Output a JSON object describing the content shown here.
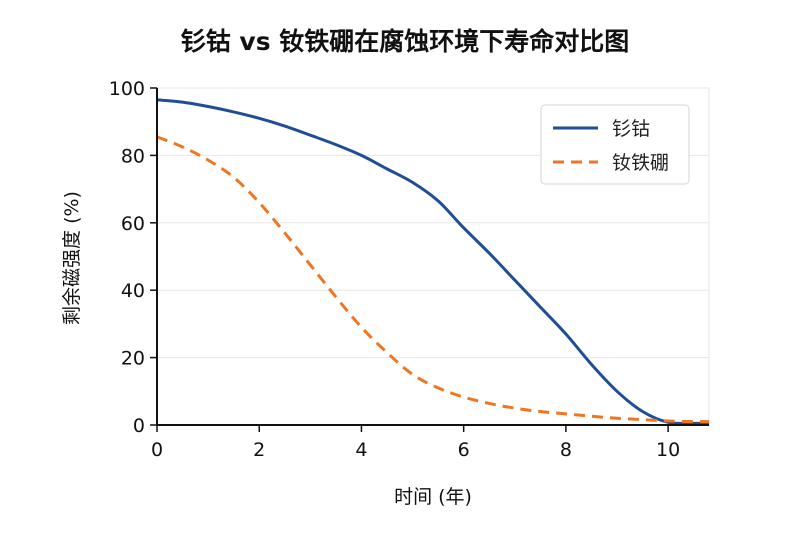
{
  "chart_data": {
    "type": "line",
    "title": "钐钴 vs 钕铁硼在腐蚀环境下寿命对比图",
    "xlabel": "时间 (年)",
    "ylabel": "剩余磁强度 (%)",
    "xlim": [
      0,
      10.8
    ],
    "ylim": [
      0,
      100
    ],
    "xticks": [
      0,
      2,
      4,
      6,
      8,
      10
    ],
    "yticks": [
      0,
      20,
      40,
      60,
      80,
      100
    ],
    "grid": "horizontal",
    "legend_position": "top-right",
    "series": [
      {
        "name": "钐钴",
        "color": "#1f4e96",
        "style": "solid",
        "x": [
          0,
          0.5,
          1,
          1.5,
          2,
          2.5,
          3,
          3.5,
          4,
          4.5,
          5,
          5.5,
          6,
          6.5,
          7,
          7.5,
          8,
          8.5,
          9,
          9.5,
          10,
          10.5,
          10.8
        ],
        "y": [
          96.5,
          95.8,
          94.5,
          92.9,
          91,
          88.7,
          86,
          83.2,
          80,
          76,
          72,
          66.5,
          58.5,
          51,
          43,
          35,
          27,
          18,
          10,
          4,
          0.8,
          0.5,
          0.5
        ]
      },
      {
        "name": "钕铁硼",
        "color": "#ee7623",
        "style": "dashed",
        "x": [
          0,
          0.5,
          1,
          1.5,
          2,
          2.5,
          3,
          3.5,
          4,
          4.5,
          5,
          5.5,
          6,
          6.5,
          7,
          7.5,
          8,
          8.5,
          9,
          9.5,
          10,
          10.5,
          10.8
        ],
        "y": [
          85.5,
          82.5,
          78.6,
          73.5,
          66,
          57,
          47.5,
          38,
          29,
          21.5,
          15,
          11,
          8.3,
          6.4,
          5,
          4,
          3.3,
          2.6,
          2,
          1.6,
          1.2,
          1,
          1
        ]
      }
    ]
  }
}
